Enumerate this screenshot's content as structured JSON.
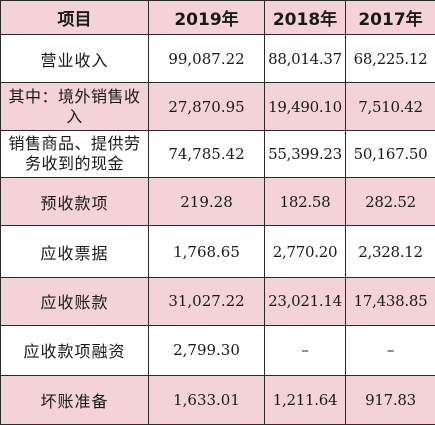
{
  "table": {
    "headers": [
      "项目",
      "2019年",
      "2018年",
      "2017年"
    ],
    "rows": [
      {
        "label": "营业收入",
        "values": [
          "99,087.22",
          "88,014.37",
          "68,225.12"
        ]
      },
      {
        "label": "其中：境外销售收入",
        "values": [
          "27,870.95",
          "19,490.10",
          "7,510.42"
        ]
      },
      {
        "label": "销售商品、提供劳务收到的现金",
        "values": [
          "74,785.42",
          "55,399.23",
          "50,167.50"
        ]
      },
      {
        "label": "预收款项",
        "values": [
          "219.28",
          "182.58",
          "282.52"
        ]
      },
      {
        "label": "应收票据",
        "values": [
          "1,768.65",
          "2,770.20",
          "2,328.12"
        ]
      },
      {
        "label": "应收账款",
        "values": [
          "31,027.22",
          "23,021.14",
          "17,438.85"
        ]
      },
      {
        "label": "应收款项融资",
        "values": [
          "2,799.30",
          "–",
          "–"
        ]
      },
      {
        "label": "坏账准备",
        "values": [
          "1,633.01",
          "1,211.64",
          "917.83"
        ]
      }
    ]
  },
  "colors": {
    "header_bg": "#f4d3d8",
    "stripe_bg": "#f4d3d8",
    "border": "#2a2a2a"
  }
}
